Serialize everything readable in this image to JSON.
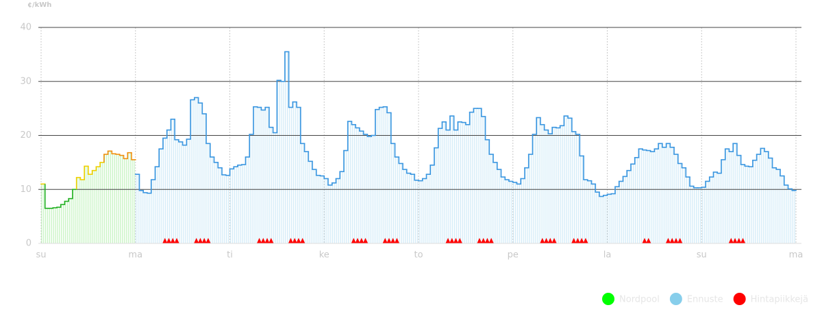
{
  "chart_data": {
    "type": "step",
    "y_label": "¢/kWh",
    "xlim": [
      0,
      192
    ],
    "ylim": [
      0,
      40
    ],
    "xticks": [
      {
        "value": 0,
        "label": "su"
      },
      {
        "value": 24,
        "label": "ma"
      },
      {
        "value": 48,
        "label": "ti"
      },
      {
        "value": 72,
        "label": "ke"
      },
      {
        "value": 96,
        "label": "to"
      },
      {
        "value": 120,
        "label": "pe"
      },
      {
        "value": 144,
        "label": "la"
      },
      {
        "value": 168,
        "label": "su"
      },
      {
        "value": 192,
        "label": "ma"
      }
    ],
    "yticks": [
      0,
      10,
      20,
      30,
      40
    ],
    "grid": true,
    "legend": "bottom-right",
    "series": [
      {
        "name": "Nordpool",
        "color": "#00ff00",
        "x": [
          0,
          1,
          2,
          3,
          4,
          5,
          6,
          7,
          8,
          9,
          10,
          11,
          12,
          13,
          14,
          15,
          16,
          17,
          18,
          19,
          20,
          21,
          22,
          23
        ],
        "values": [
          11,
          6.5,
          6.5,
          6.6,
          6.7,
          7.2,
          7.8,
          8.3,
          10,
          12.2,
          11.8,
          14.3,
          12.8,
          13.5,
          14.2,
          15,
          16.5,
          17.1,
          16.6,
          16.5,
          16.3,
          15.7,
          16.8,
          15.5
        ],
        "colors": [
          "#f0d000",
          "#22b022",
          "#22b022",
          "#22b022",
          "#22b022",
          "#22b022",
          "#22b022",
          "#22b022",
          "#22b022",
          "#f0d000",
          "#f0d000",
          "#f0d000",
          "#f0d000",
          "#f0d000",
          "#f0d000",
          "#f0d000",
          "#f09010",
          "#f09010",
          "#f09010",
          "#f09010",
          "#f09010",
          "#f09010",
          "#f09010",
          "#f09010"
        ]
      },
      {
        "name": "Ennuste",
        "color": "#87ceeb",
        "line_color": "#3a96e0",
        "x": [
          24,
          25,
          26,
          27,
          28,
          29,
          30,
          31,
          32,
          33,
          34,
          35,
          36,
          37,
          38,
          39,
          40,
          41,
          42,
          43,
          44,
          45,
          46,
          47,
          48,
          49,
          50,
          51,
          52,
          53,
          54,
          55,
          56,
          57,
          58,
          59,
          60,
          61,
          62,
          63,
          64,
          65,
          66,
          67,
          68,
          69,
          70,
          71,
          72,
          73,
          74,
          75,
          76,
          77,
          78,
          79,
          80,
          81,
          82,
          83,
          84,
          85,
          86,
          87,
          88,
          89,
          90,
          91,
          92,
          93,
          94,
          95,
          96,
          97,
          98,
          99,
          100,
          101,
          102,
          103,
          104,
          105,
          106,
          107,
          108,
          109,
          110,
          111,
          112,
          113,
          114,
          115,
          116,
          117,
          118,
          119,
          120,
          121,
          122,
          123,
          124,
          125,
          126,
          127,
          128,
          129,
          130,
          131,
          132,
          133,
          134,
          135,
          136,
          137,
          138,
          139,
          140,
          141,
          142,
          143,
          144,
          145,
          146,
          147,
          148,
          149,
          150,
          151,
          152,
          153,
          154,
          155,
          156,
          157,
          158,
          159,
          160,
          161,
          162,
          163,
          164,
          165,
          166,
          167,
          168,
          169,
          170,
          171,
          172,
          173,
          174,
          175,
          176,
          177,
          178,
          179,
          180,
          181,
          182,
          183,
          184,
          185,
          186,
          187,
          188,
          189,
          190,
          191
        ],
        "values": [
          12.8,
          9.8,
          9.4,
          9.3,
          11.8,
          14.2,
          17.5,
          19.5,
          21,
          23,
          19.2,
          18.8,
          18.2,
          19.3,
          26.6,
          27,
          26,
          24,
          18.5,
          16,
          15,
          14,
          12.7,
          12.6,
          13.8,
          14.2,
          14.5,
          14.6,
          16,
          20.2,
          25.3,
          25.2,
          24.7,
          25.2,
          21.5,
          20.5,
          30.2,
          30,
          35.5,
          25.2,
          26.2,
          25.2,
          18.5,
          17,
          15.2,
          13.7,
          12.6,
          12.5,
          12,
          10.8,
          11.2,
          12,
          13.3,
          17.2,
          22.6,
          22,
          21.4,
          20.8,
          20.2,
          19.8,
          20,
          24.8,
          25.2,
          25.3,
          24.2,
          18.5,
          16,
          14.8,
          13.7,
          13,
          12.8,
          11.7,
          11.6,
          12,
          12.8,
          14.5,
          17.7,
          21.3,
          22.5,
          21,
          23.6,
          21,
          22.5,
          22.4,
          22,
          24.3,
          25,
          25,
          23.5,
          19.2,
          16.5,
          15,
          13.7,
          12.3,
          11.8,
          11.5,
          11.3,
          11,
          12,
          14,
          16.5,
          20.2,
          23.3,
          22,
          21,
          20.3,
          21.5,
          21.4,
          21.8,
          23.6,
          23.2,
          20.7,
          20.2,
          16.2,
          11.8,
          11.6,
          11,
          9.5,
          8.7,
          8.9,
          9.1,
          9.2,
          10.5,
          11.5,
          12.4,
          13.5,
          14.7,
          15.9,
          17.5,
          17.3,
          17.2,
          17,
          17.5,
          18.5,
          17.8,
          18.5,
          17.8,
          16.5,
          14.8,
          14,
          12.3,
          10.6,
          10.3,
          10.3,
          10.4,
          11.5,
          12.3,
          13.2,
          13,
          15.5,
          17.5,
          17,
          18.5,
          16.3,
          14.6,
          14.3,
          14.2,
          15.4,
          16.5,
          17.6,
          17,
          15.8,
          14,
          13.7,
          12.5,
          10.8,
          10.1,
          9.8
        ]
      },
      {
        "name": "Hintapiikkejä",
        "color": "#ff0000",
        "marker": "triangle",
        "x": [
          31,
          32,
          33,
          34,
          39,
          40,
          41,
          42,
          55,
          56,
          57,
          58,
          63,
          64,
          65,
          66,
          79,
          80,
          81,
          82,
          87,
          88,
          89,
          90,
          103,
          104,
          105,
          106,
          111,
          112,
          113,
          114,
          127,
          128,
          129,
          130,
          135,
          136,
          137,
          138,
          153,
          154,
          159,
          160,
          161,
          162,
          175,
          176,
          177,
          178
        ],
        "values": [
          0,
          0,
          0,
          0,
          0,
          0,
          0,
          0,
          0,
          0,
          0,
          0,
          0,
          0,
          0,
          0,
          0,
          0,
          0,
          0,
          0,
          0,
          0,
          0,
          0,
          0,
          0,
          0,
          0,
          0,
          0,
          0,
          0,
          0,
          0,
          0,
          0,
          0,
          0,
          0,
          0,
          0,
          0,
          0,
          0,
          0,
          0,
          0,
          0,
          0
        ]
      }
    ]
  }
}
